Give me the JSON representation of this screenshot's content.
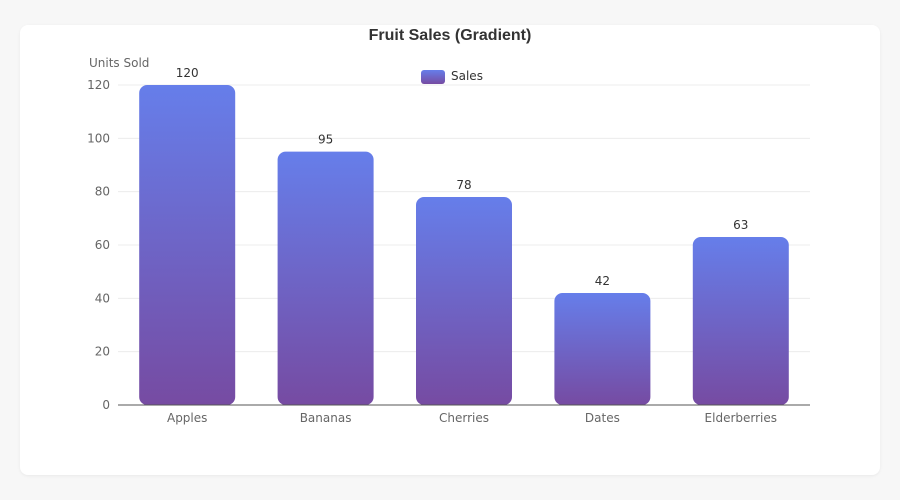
{
  "chart_data": {
    "type": "bar",
    "title": "Fruit Sales (Gradient)",
    "ylabel": "Units Sold",
    "xlabel": "",
    "categories": [
      "Apples",
      "Bananas",
      "Cherries",
      "Dates",
      "Elderberries"
    ],
    "series": [
      {
        "name": "Sales",
        "values": [
          120,
          95,
          78,
          42,
          63
        ]
      }
    ],
    "ylim": [
      0,
      120
    ],
    "yticks": [
      0,
      20,
      40,
      60,
      80,
      100,
      120
    ],
    "grid": true,
    "legend_position": "top-center",
    "data_labels": true,
    "colors": {
      "gradient_top": "#667eea",
      "gradient_bottom": "#764ba2"
    }
  }
}
